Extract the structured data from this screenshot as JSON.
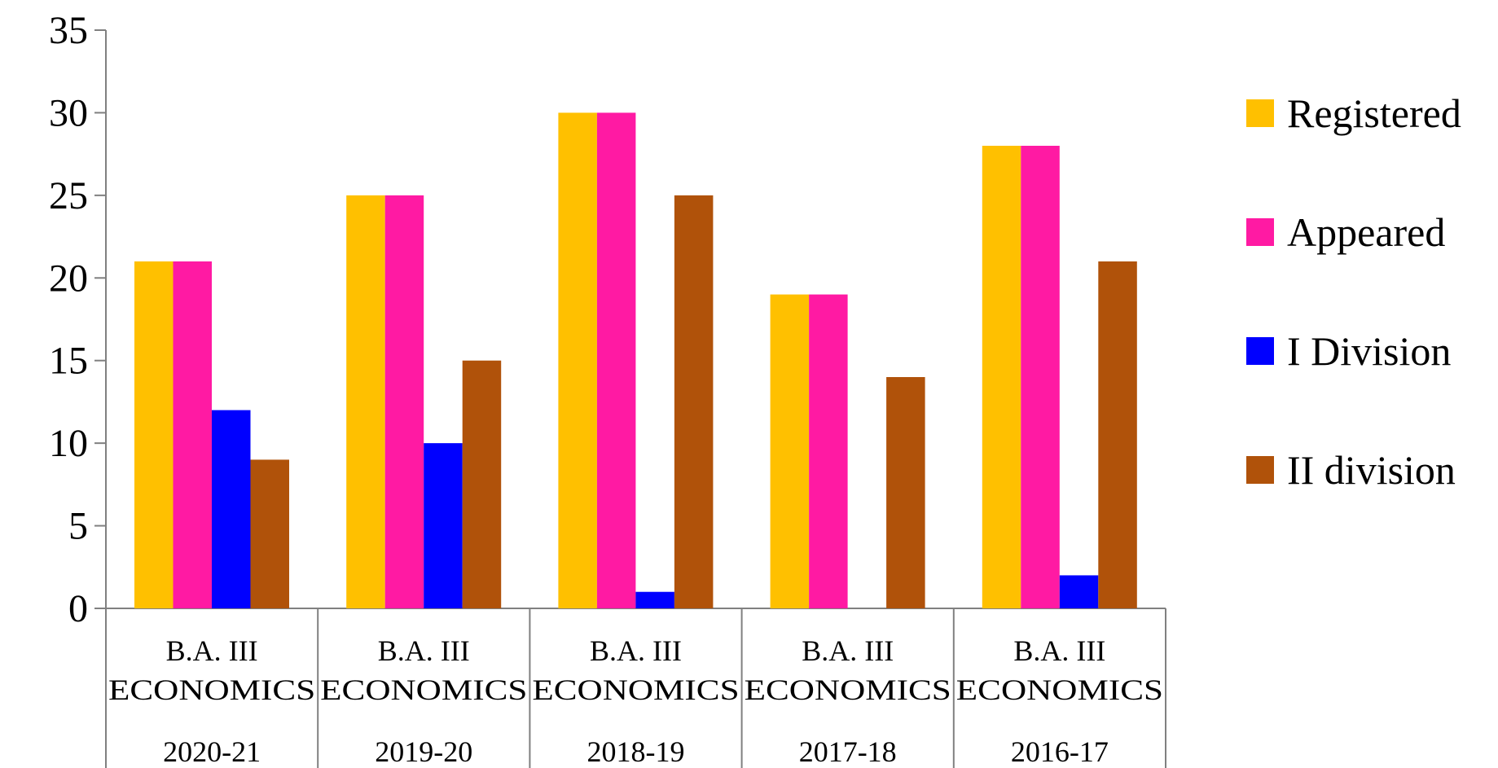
{
  "chart_data": {
    "type": "bar",
    "categories": [
      {
        "line1": "B.A. III",
        "line2": "ECONOMICS",
        "year": "2020-21"
      },
      {
        "line1": "B.A. III",
        "line2": "ECONOMICS",
        "year": "2019-20"
      },
      {
        "line1": "B.A. III",
        "line2": "ECONOMICS",
        "year": "2018-19"
      },
      {
        "line1": "B.A. III",
        "line2": "ECONOMICS",
        "year": "2017-18"
      },
      {
        "line1": "B.A. III",
        "line2": "ECONOMICS",
        "year": "2016-17"
      }
    ],
    "series": [
      {
        "name": "Registered",
        "color": "#FFC000",
        "values": [
          21,
          25,
          30,
          19,
          28
        ]
      },
      {
        "name": "Appeared",
        "color": "#FF1AA3",
        "values": [
          21,
          25,
          30,
          19,
          28
        ]
      },
      {
        "name": "I Division",
        "color": "#0000FF",
        "values": [
          12,
          10,
          1,
          0,
          2
        ]
      },
      {
        "name": "II division",
        "color": "#B0520A",
        "values": [
          9,
          15,
          25,
          14,
          21
        ]
      }
    ],
    "ylim": [
      0,
      35
    ],
    "yticks": [
      0,
      5,
      10,
      15,
      20,
      25,
      30,
      35
    ],
    "legend_position": "right",
    "grid": false
  }
}
